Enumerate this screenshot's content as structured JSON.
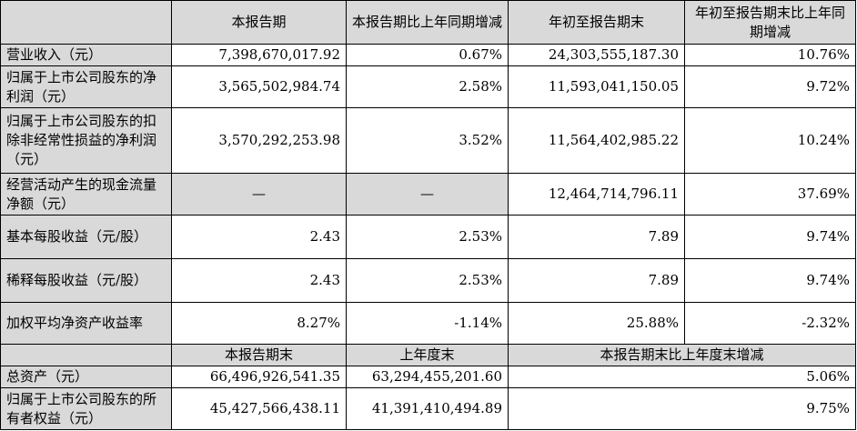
{
  "header": {
    "col0": "",
    "col1": "本报告期",
    "col2": "本报告期比上年同期增减",
    "col3": "年初至报告期末",
    "col4": "年初至报告期末比上年同期增减"
  },
  "rows": [
    {
      "label": "营业收入（元）",
      "v1": "7,398,670,017.92",
      "v2": "0.67%",
      "v3": "24,303,555,187.30",
      "v4": "10.76%"
    },
    {
      "label": "归属于上市公司股东的净利润（元）",
      "v1": "3,565,502,984.74",
      "v2": "2.58%",
      "v3": "11,593,041,150.05",
      "v4": "9.72%"
    },
    {
      "label": "归属于上市公司股东的扣除非经常性损益的净利润（元）",
      "v1": "3,570,292,253.98",
      "v2": "3.52%",
      "v3": "11,564,402,985.22",
      "v4": "10.24%"
    },
    {
      "label": "经营活动产生的现金流量净额（元）",
      "v1": "—",
      "v2": "—",
      "v3": "12,464,714,796.11",
      "v4": "37.69%"
    },
    {
      "label": "基本每股收益（元/股）",
      "v1": "2.43",
      "v2": "2.53%",
      "v3": "7.89",
      "v4": "9.74%"
    },
    {
      "label": "稀释每股收益（元/股）",
      "v1": "2.43",
      "v2": "2.53%",
      "v3": "7.89",
      "v4": "9.74%"
    },
    {
      "label": "加权平均净资产收益率",
      "v1": "8.27%",
      "v2": "-1.14%",
      "v3": "25.88%",
      "v4": "-2.32%"
    }
  ],
  "header2": {
    "col0": "",
    "col1": "本报告期末",
    "col2": "上年度末",
    "col3": "本报告期末比上年度末增减"
  },
  "rows2": [
    {
      "label": "总资产（元）",
      "v1": "66,496,926,541.35",
      "v2": "63,294,455,201.60",
      "v3": "5.06%"
    },
    {
      "label": "归属于上市公司股东的所有者权益（元）",
      "v1": "45,427,566,438.11",
      "v2": "41,391,410,494.89",
      "v3": "9.75%"
    }
  ]
}
